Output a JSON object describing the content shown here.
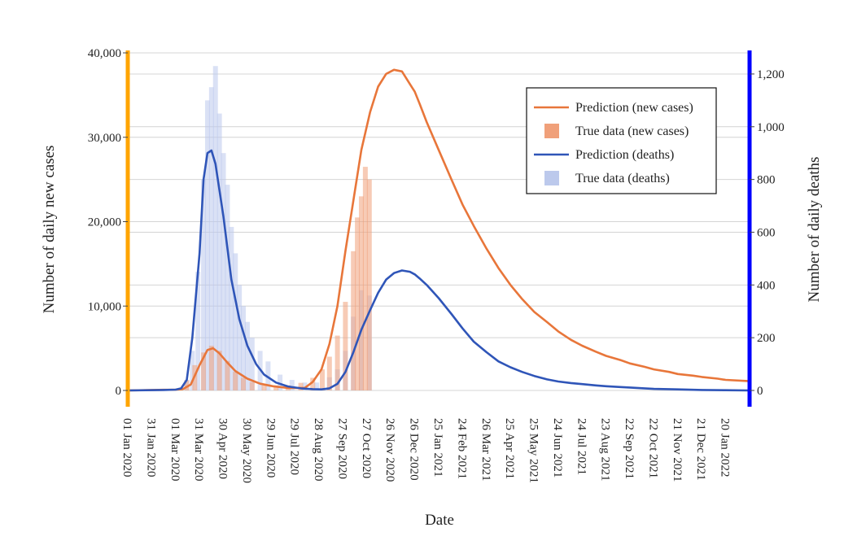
{
  "chart_data": {
    "type": "line",
    "xlabel": "Date",
    "ylabel_left": "Number of daily new cases",
    "ylabel_right": "Number of daily deaths",
    "x_range": [
      "2020-01-01",
      "2022-02-19"
    ],
    "ylim_left": [
      0,
      40000
    ],
    "ylim_right": [
      0,
      1280
    ],
    "x_ticks": [
      "01 Jan 2020",
      "31 Jan 2020",
      "01 Mar 2020",
      "31 Mar 2020",
      "30 Apr 2020",
      "30 May 2020",
      "29 Jun 2020",
      "29 Jul 2020",
      "28 Aug 2020",
      "27 Sep 2020",
      "27 Oct 2020",
      "26 Nov 2020",
      "26 Dec 2020",
      "25 Jan 2021",
      "24 Feb 2021",
      "26 Mar 2021",
      "25 Apr 2021",
      "25 May 2021",
      "24 Jun 2021",
      "24 Jul 2021",
      "23 Aug 2021",
      "22 Sep 2021",
      "22 Oct 2021",
      "21 Nov 2021",
      "21 Dec 2021",
      "20 Jan 2022"
    ],
    "y_ticks_left": [
      "0",
      "10,000",
      "20,000",
      "30,000",
      "40,000"
    ],
    "y_ticks_right": [
      "0",
      "200",
      "400",
      "600",
      "800",
      "1,000",
      "1,200"
    ],
    "legend_position": "top-right",
    "grid": true,
    "colors": {
      "left_axis": "#FFA500",
      "right_axis": "#0000FF",
      "pred_cases": "#E8763A",
      "true_cases": "#F0A07A",
      "pred_deaths": "#2F55B8",
      "true_deaths": "#BCC9EC"
    },
    "series": [
      {
        "name": "Prediction (new cases)",
        "axis": "left",
        "kind": "line",
        "x": [
          "2020-01-01",
          "2020-02-15",
          "2020-03-01",
          "2020-03-10",
          "2020-03-20",
          "2020-03-31",
          "2020-04-10",
          "2020-04-17",
          "2020-04-25",
          "2020-05-05",
          "2020-05-15",
          "2020-05-30",
          "2020-06-15",
          "2020-07-01",
          "2020-07-20",
          "2020-08-10",
          "2020-08-20",
          "2020-08-31",
          "2020-09-10",
          "2020-09-20",
          "2020-09-30",
          "2020-10-10",
          "2020-10-20",
          "2020-10-31",
          "2020-11-10",
          "2020-11-20",
          "2020-11-30",
          "2020-12-10",
          "2020-12-20",
          "2020-12-26",
          "2021-01-01",
          "2021-01-10",
          "2021-01-25",
          "2021-02-10",
          "2021-02-24",
          "2021-03-10",
          "2021-03-26",
          "2021-04-10",
          "2021-04-25",
          "2021-05-10",
          "2021-05-25",
          "2021-06-10",
          "2021-06-24",
          "2021-07-10",
          "2021-07-24",
          "2021-08-10",
          "2021-08-23",
          "2021-09-10",
          "2021-09-22",
          "2021-10-10",
          "2021-10-22",
          "2021-11-10",
          "2021-11-21",
          "2021-12-10",
          "2021-12-21",
          "2022-01-10",
          "2022-01-20",
          "2022-02-19"
        ],
        "y": [
          0,
          80,
          100,
          150,
          700,
          3000,
          4800,
          5000,
          4400,
          3300,
          2300,
          1400,
          800,
          500,
          300,
          300,
          1000,
          2500,
          5500,
          10000,
          16500,
          22500,
          28500,
          33000,
          36000,
          37500,
          38000,
          37800,
          36300,
          35400,
          34000,
          31800,
          28500,
          25000,
          22000,
          19500,
          16800,
          14500,
          12500,
          10800,
          9300,
          8100,
          7000,
          6000,
          5300,
          4600,
          4100,
          3600,
          3200,
          2800,
          2500,
          2200,
          1950,
          1750,
          1600,
          1400,
          1250,
          1100
        ]
      },
      {
        "name": "True data (new cases)",
        "axis": "left",
        "kind": "bar",
        "x": [
          "2020-03-05",
          "2020-03-15",
          "2020-03-25",
          "2020-04-05",
          "2020-04-15",
          "2020-04-25",
          "2020-05-05",
          "2020-05-15",
          "2020-05-25",
          "2020-06-05",
          "2020-06-20",
          "2020-07-05",
          "2020-07-20",
          "2020-08-05",
          "2020-08-20",
          "2020-09-01",
          "2020-09-10",
          "2020-09-20",
          "2020-09-30",
          "2020-10-10",
          "2020-10-15",
          "2020-10-20",
          "2020-10-25",
          "2020-10-30"
        ],
        "y": [
          200,
          1200,
          3000,
          4500,
          5300,
          4700,
          3500,
          2200,
          1500,
          1000,
          600,
          500,
          600,
          900,
          1500,
          2500,
          4000,
          6500,
          10500,
          16500,
          20500,
          23000,
          26500,
          25000
        ]
      },
      {
        "name": "Prediction (deaths)",
        "axis": "right",
        "kind": "line",
        "x": [
          "2020-01-01",
          "2020-02-15",
          "2020-03-01",
          "2020-03-08",
          "2020-03-15",
          "2020-03-22",
          "2020-03-31",
          "2020-04-05",
          "2020-04-10",
          "2020-04-15",
          "2020-04-20",
          "2020-04-30",
          "2020-05-10",
          "2020-05-20",
          "2020-05-30",
          "2020-06-10",
          "2020-06-20",
          "2020-07-05",
          "2020-07-20",
          "2020-08-05",
          "2020-08-20",
          "2020-08-31",
          "2020-09-10",
          "2020-09-20",
          "2020-09-30",
          "2020-10-10",
          "2020-10-20",
          "2020-10-31",
          "2020-11-10",
          "2020-11-20",
          "2020-11-30",
          "2020-12-10",
          "2020-12-20",
          "2020-12-26",
          "2021-01-01",
          "2021-01-10",
          "2021-01-25",
          "2021-02-10",
          "2021-02-24",
          "2021-03-10",
          "2021-03-26",
          "2021-04-10",
          "2021-04-25",
          "2021-05-10",
          "2021-05-25",
          "2021-06-10",
          "2021-06-24",
          "2021-07-10",
          "2021-07-24",
          "2021-08-10",
          "2021-08-23",
          "2021-09-10",
          "2021-09-22",
          "2021-10-10",
          "2021-10-22",
          "2021-11-21",
          "2021-12-21",
          "2022-01-20",
          "2022-02-19"
        ],
        "y": [
          0,
          2,
          3,
          8,
          40,
          200,
          520,
          800,
          900,
          910,
          860,
          660,
          420,
          270,
          170,
          100,
          60,
          30,
          15,
          8,
          5,
          4,
          8,
          25,
          70,
          145,
          230,
          305,
          370,
          420,
          445,
          455,
          450,
          440,
          425,
          400,
          350,
          290,
          235,
          185,
          145,
          110,
          88,
          70,
          55,
          42,
          34,
          28,
          24,
          19,
          16,
          13,
          11,
          8,
          6,
          4,
          2,
          1,
          0
        ]
      },
      {
        "name": "True data (deaths)",
        "axis": "right",
        "kind": "bar",
        "x": [
          "2020-03-15",
          "2020-03-22",
          "2020-03-29",
          "2020-04-05",
          "2020-04-10",
          "2020-04-15",
          "2020-04-20",
          "2020-04-25",
          "2020-04-30",
          "2020-05-05",
          "2020-05-10",
          "2020-05-15",
          "2020-05-20",
          "2020-05-25",
          "2020-05-30",
          "2020-06-05",
          "2020-06-15",
          "2020-06-25",
          "2020-07-10",
          "2020-07-25",
          "2020-08-10",
          "2020-08-25",
          "2020-09-10",
          "2020-09-20",
          "2020-09-30",
          "2020-10-10",
          "2020-10-20",
          "2020-10-30"
        ],
        "y": [
          40,
          150,
          450,
          800,
          1100,
          1150,
          1230,
          1050,
          900,
          780,
          620,
          520,
          400,
          320,
          260,
          200,
          150,
          110,
          60,
          40,
          30,
          30,
          50,
          80,
          150,
          280,
          380,
          360
        ]
      }
    ]
  },
  "legend": {
    "items": [
      {
        "label": "Prediction (new cases)",
        "kind": "line",
        "color": "#E8763A"
      },
      {
        "label": "True data (new cases)",
        "kind": "square",
        "color": "#F0A07A"
      },
      {
        "label": "Prediction (deaths)",
        "kind": "line",
        "color": "#2F55B8"
      },
      {
        "label": "True data (deaths)",
        "kind": "square",
        "color": "#BCC9EC"
      }
    ]
  }
}
